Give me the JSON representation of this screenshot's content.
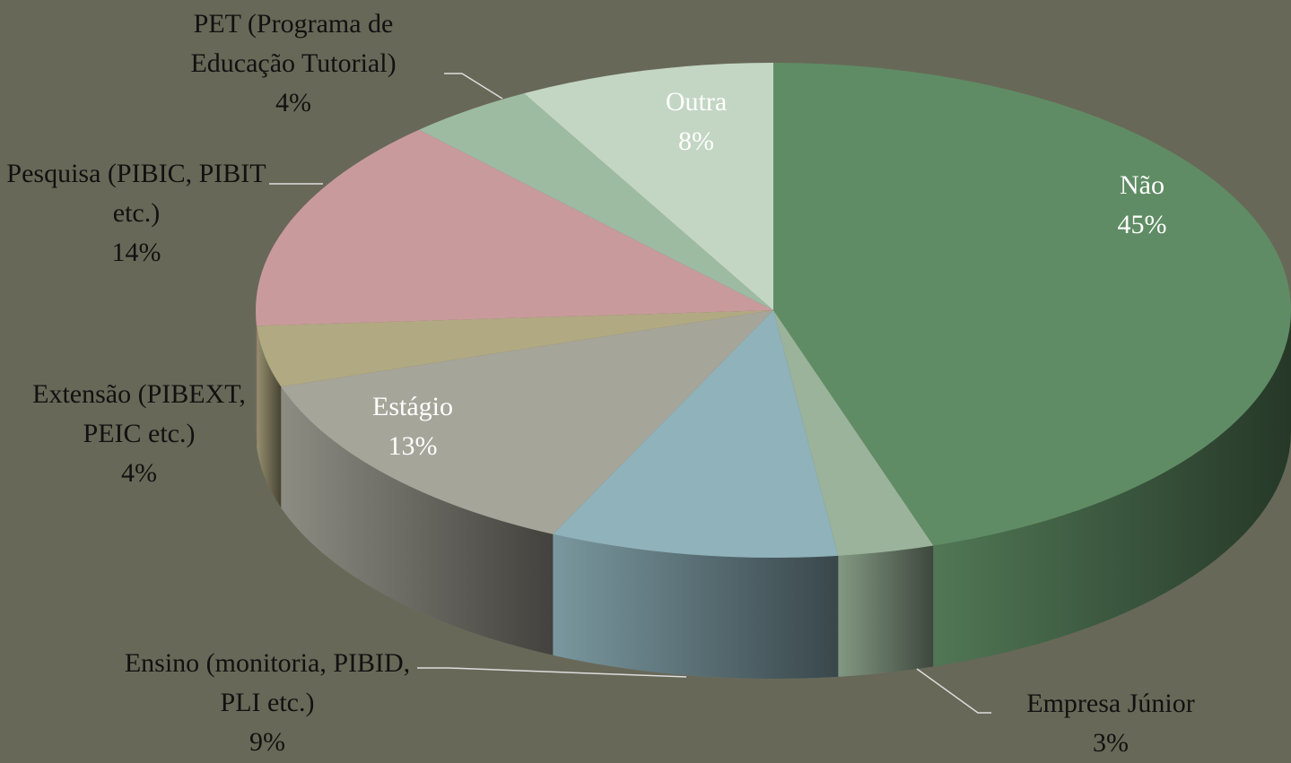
{
  "chart_data": {
    "type": "pie",
    "categories": [
      "Não",
      "Empresa Júnior",
      "Ensino (monitoria, PIBID, PLI etc.)",
      "Estágio",
      "Extensão (PIBEXT, PEIC etc.)",
      "Pesquisa (PIBIC, PIBIT etc.)",
      "PET (Programa de Educação Tutorial)",
      "Outra"
    ],
    "values": [
      45,
      3,
      9,
      13,
      4,
      14,
      4,
      8
    ],
    "value_labels": [
      "45%",
      "3%",
      "9%",
      "13%",
      "4%",
      "14%",
      "4%",
      "8%"
    ],
    "colors": [
      "#5f8c64",
      "#9ab39a",
      "#8fb2bb",
      "#a6a59a",
      "#b1a982",
      "#c99a9c",
      "#9dbba0",
      "#c3d6c3"
    ]
  }
}
